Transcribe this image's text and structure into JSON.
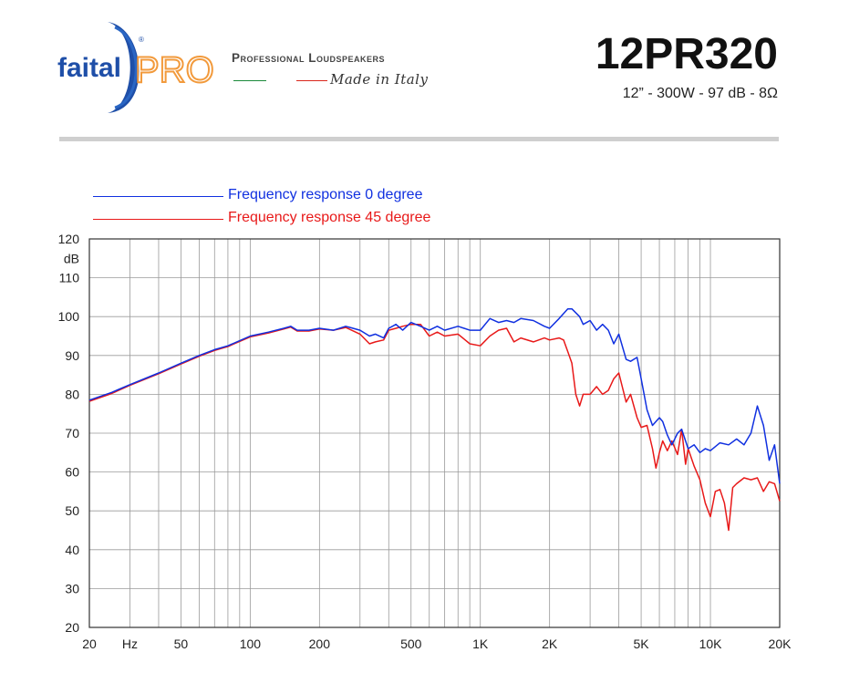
{
  "brand": {
    "name_left": "faital",
    "name_right": "PRO",
    "registered_mark": "®",
    "tagline": "Professional Loudspeakers",
    "made_in": "Made in Italy",
    "colors": {
      "blue": "#1f4fa8",
      "orange": "#f29a3c",
      "green": "#1a8a3a",
      "red": "#d9261c"
    }
  },
  "product": {
    "model": "12PR320",
    "specs": "12” - 300W - 97 dB - 8Ω"
  },
  "chart_data": {
    "type": "line",
    "title": "",
    "xlabel": "",
    "ylabel": "dB",
    "x_scale": "log",
    "xlim": [
      20,
      20000
    ],
    "ylim": [
      20,
      120
    ],
    "x_ticks": [
      {
        "value": 20,
        "label": "20"
      },
      {
        "value": 30,
        "label": "Hz"
      },
      {
        "value": 50,
        "label": "50"
      },
      {
        "value": 100,
        "label": "100"
      },
      {
        "value": 200,
        "label": "200"
      },
      {
        "value": 500,
        "label": "500"
      },
      {
        "value": 1000,
        "label": "1K"
      },
      {
        "value": 2000,
        "label": "2K"
      },
      {
        "value": 5000,
        "label": "5K"
      },
      {
        "value": 10000,
        "label": "10K"
      },
      {
        "value": 20000,
        "label": "20K"
      }
    ],
    "y_ticks": [
      20,
      30,
      40,
      50,
      60,
      70,
      80,
      90,
      100,
      110,
      120
    ],
    "grid": true,
    "legend_position": "top-left",
    "series": [
      {
        "name": "Frequency response 0 degree",
        "color": "#1030e0",
        "x": [
          20,
          25,
          30,
          40,
          50,
          60,
          70,
          80,
          100,
          120,
          140,
          150,
          160,
          180,
          200,
          230,
          260,
          300,
          330,
          350,
          380,
          400,
          430,
          460,
          500,
          550,
          600,
          650,
          700,
          800,
          900,
          1000,
          1100,
          1200,
          1300,
          1400,
          1500,
          1700,
          1900,
          2000,
          2200,
          2400,
          2500,
          2700,
          2800,
          3000,
          3200,
          3400,
          3600,
          3800,
          4000,
          4300,
          4500,
          4800,
          5000,
          5300,
          5600,
          6000,
          6200,
          6500,
          6800,
          7200,
          7500,
          8000,
          8500,
          9000,
          9500,
          10000,
          11000,
          12000,
          13000,
          14000,
          15000,
          16000,
          17000,
          18000,
          19000,
          20000
        ],
        "values": [
          78.5,
          80.5,
          82.5,
          85.5,
          88,
          90,
          91.5,
          92.5,
          95,
          96,
          97,
          97.5,
          96.5,
          96.5,
          97,
          96.5,
          97.5,
          96.5,
          95,
          95.5,
          94.5,
          97,
          98,
          96.5,
          98.5,
          97.5,
          96.5,
          97.5,
          96.5,
          97.5,
          96.5,
          96.5,
          99.5,
          98.5,
          99,
          98.5,
          99.5,
          99,
          97.5,
          97,
          99.5,
          102,
          102,
          100,
          98,
          99,
          96.5,
          98,
          96.5,
          93,
          95.5,
          89,
          88.5,
          89.5,
          84,
          76,
          72,
          74,
          73,
          69.5,
          67,
          70,
          71,
          66,
          67,
          65,
          66,
          65.5,
          67.5,
          67,
          68.5,
          67,
          70,
          77,
          72,
          63,
          67,
          57
        ]
      },
      {
        "name": "Frequency response 45 degree",
        "color": "#e81919",
        "x": [
          20,
          25,
          30,
          40,
          50,
          60,
          70,
          80,
          100,
          120,
          140,
          150,
          160,
          180,
          200,
          230,
          260,
          300,
          330,
          350,
          380,
          400,
          430,
          460,
          500,
          550,
          600,
          650,
          700,
          800,
          900,
          1000,
          1100,
          1200,
          1300,
          1400,
          1500,
          1700,
          1900,
          2000,
          2200,
          2300,
          2400,
          2500,
          2600,
          2700,
          2800,
          3000,
          3200,
          3400,
          3600,
          3800,
          4000,
          4300,
          4500,
          4800,
          5000,
          5300,
          5600,
          5800,
          6000,
          6200,
          6500,
          6800,
          7200,
          7500,
          7800,
          8000,
          8500,
          9000,
          9500,
          10000,
          10500,
          11000,
          11500,
          12000,
          12500,
          13000,
          14000,
          15000,
          16000,
          17000,
          18000,
          19000,
          20000
        ],
        "values": [
          78.2,
          80.2,
          82.3,
          85.3,
          87.8,
          89.8,
          91.3,
          92.3,
          94.8,
          95.8,
          96.8,
          97.3,
          96.3,
          96.3,
          96.8,
          96.5,
          97.2,
          95.5,
          93,
          93.5,
          94,
          96.5,
          97,
          97.5,
          98,
          98,
          95,
          96,
          95,
          95.5,
          93,
          92.5,
          95,
          96.5,
          97,
          93.5,
          94.5,
          93.5,
          94.5,
          94,
          94.5,
          94,
          91,
          88,
          80,
          77,
          80,
          80,
          82,
          80,
          81,
          84,
          85.5,
          78,
          80,
          74,
          71.5,
          72,
          66,
          61,
          65,
          68,
          65.5,
          68,
          64.5,
          71,
          62,
          66,
          61.5,
          58,
          52,
          48.5,
          55,
          55.5,
          52,
          45,
          56,
          57,
          58.5,
          58,
          58.5,
          55,
          57.5,
          57,
          52.5
        ]
      }
    ]
  }
}
